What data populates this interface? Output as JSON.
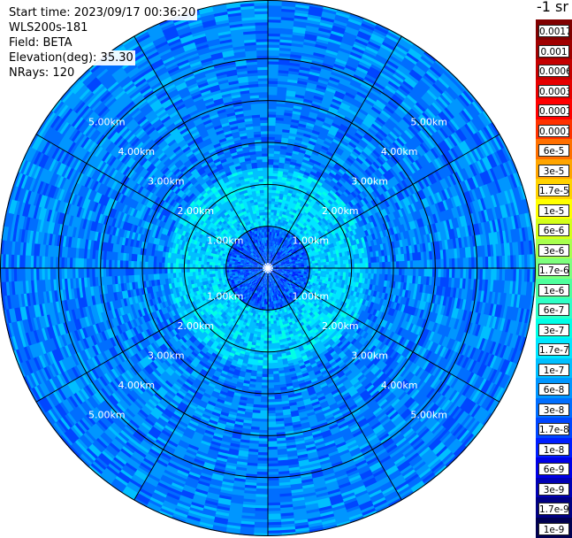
{
  "header": {
    "start_time": "Start time: 2023/09/17 00:36:20",
    "instrument": "WLS200s-181",
    "field": "Field: BETA",
    "elevation": "Elevation(deg): 35.30",
    "nrays": "NRays: 120"
  },
  "colorbar": {
    "title": "-1 sr",
    "levels": [
      "0.0017",
      "0.001",
      "0.0006",
      "0.0003",
      "0.00017",
      "0.0001",
      "6e-5",
      "3e-5",
      "1.7e-5",
      "1e-5",
      "6e-6",
      "3e-6",
      "1.7e-6",
      "1e-6",
      "6e-7",
      "3e-7",
      "1.7e-7",
      "1e-7",
      "6e-8",
      "3e-8",
      "1.7e-8",
      "1e-8",
      "6e-9",
      "3e-9",
      "1.7e-9",
      "1e-9"
    ],
    "colors": [
      "#800000",
      "#a00000",
      "#c40000",
      "#e60000",
      "#ff0000",
      "#ff3200",
      "#ff7000",
      "#ffa500",
      "#ffd200",
      "#ffff00",
      "#d4ff1a",
      "#a8ff4e",
      "#7dff7d",
      "#4eff9c",
      "#2effc6",
      "#00ffe6",
      "#00e6ff",
      "#00bfff",
      "#0096ff",
      "#006eff",
      "#0046ff",
      "#001eff",
      "#0000e6",
      "#0000b4",
      "#000082",
      "#000050"
    ]
  },
  "chart_data": {
    "type": "heatmap",
    "projection": "polar-ppi",
    "field": "BETA",
    "unit": "sr-1",
    "nrays": 120,
    "elevation_deg": 35.3,
    "range_rings_km": [
      1.0,
      2.0,
      3.0,
      4.0,
      5.0
    ],
    "ring_labels": [
      "1.00km",
      "2.00km",
      "3.00km",
      "4.00km",
      "5.00km"
    ],
    "spoke_angles_deg": [
      0,
      30,
      60,
      90,
      120,
      150,
      180,
      210,
      240,
      270,
      300,
      330
    ],
    "max_range_km": 6.4,
    "value_range": [
      1e-09,
      0.0017
    ],
    "dominant_values_by_range": [
      {
        "range_km": [
          0.0,
          1.0
        ],
        "typical_value": 1.7e-08
      },
      {
        "range_km": [
          1.0,
          2.4
        ],
        "typical_value": 1e-07
      },
      {
        "range_km": [
          2.4,
          6.4
        ],
        "typical_value": 3e-08
      }
    ],
    "grid": true
  }
}
